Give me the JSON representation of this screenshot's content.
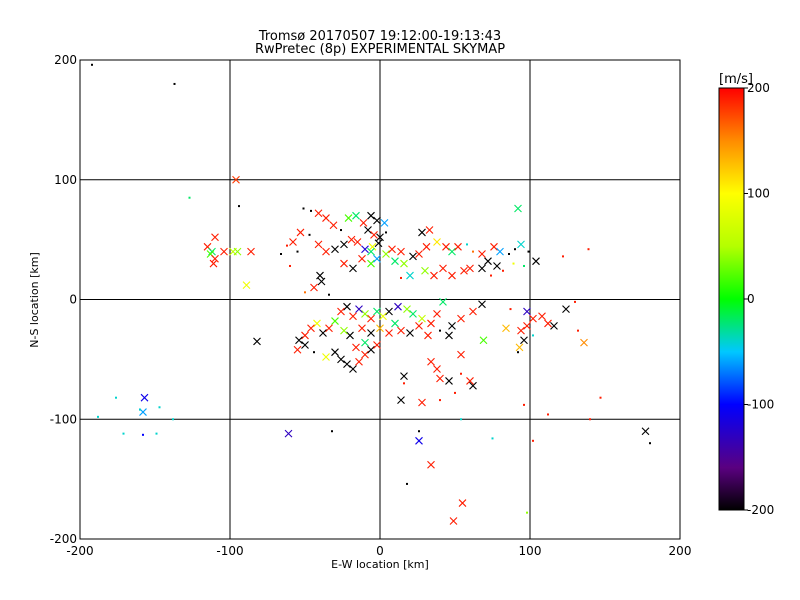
{
  "chart_data": {
    "type": "scatter",
    "title": "Tromsø 20170507 19:12:00-19:13:43",
    "subtitle": "RwPretec (8p) EXPERIMENTAL SKYMAP",
    "xlabel": "E-W location [km]",
    "ylabel": "N-S location [km]",
    "xlim": [
      -200,
      200
    ],
    "ylim": [
      -200,
      200
    ],
    "x_ticks": [
      "-200",
      "-100",
      "0",
      "100",
      "200"
    ],
    "y_ticks": [
      "-200",
      "-100",
      "0",
      "100",
      "200"
    ],
    "grid": true,
    "colorbar": {
      "label": "[m/s]",
      "range": [
        -200,
        200
      ],
      "ticks": [
        "200",
        "100",
        "0",
        "-100",
        "-200"
      ],
      "colormap": "black-purple-blue-cyan-green-yellow-orange-red"
    },
    "marker_sizes": "large 'x' for strong echoes, small dots for weak echoes",
    "points": [
      {
        "x": -192,
        "y": 196,
        "v": -200,
        "m": "dot"
      },
      {
        "x": -137,
        "y": 180,
        "v": -200,
        "m": "dot"
      },
      {
        "x": -96,
        "y": 100,
        "v": 180,
        "m": "x"
      },
      {
        "x": -127,
        "y": 85,
        "v": -20,
        "m": "dot"
      },
      {
        "x": -94,
        "y": 78,
        "v": -200,
        "m": "dot"
      },
      {
        "x": -110,
        "y": 52,
        "v": 190,
        "m": "x"
      },
      {
        "x": -115,
        "y": 44,
        "v": 190,
        "m": "x"
      },
      {
        "x": -112,
        "y": 40,
        "v": -20,
        "m": "x"
      },
      {
        "x": -113,
        "y": 38,
        "v": 20,
        "m": "x"
      },
      {
        "x": -110,
        "y": 34,
        "v": 190,
        "m": "x"
      },
      {
        "x": -111,
        "y": 30,
        "v": 190,
        "m": "x"
      },
      {
        "x": -104,
        "y": 40,
        "v": 190,
        "m": "x"
      },
      {
        "x": -98,
        "y": 40,
        "v": 60,
        "m": "x"
      },
      {
        "x": -95,
        "y": 40,
        "v": 40,
        "m": "x"
      },
      {
        "x": -86,
        "y": 40,
        "v": 190,
        "m": "x"
      },
      {
        "x": -89,
        "y": 12,
        "v": 90,
        "m": "x"
      },
      {
        "x": -82,
        "y": -35,
        "v": -200,
        "m": "x"
      },
      {
        "x": -157,
        "y": -82,
        "v": -110,
        "m": "x"
      },
      {
        "x": -158,
        "y": -94,
        "v": -60,
        "m": "x"
      },
      {
        "x": -176,
        "y": -82,
        "v": -40,
        "m": "dot"
      },
      {
        "x": -188,
        "y": -98,
        "v": -40,
        "m": "dot"
      },
      {
        "x": -160,
        "y": -92,
        "v": -40,
        "m": "dot"
      },
      {
        "x": -147,
        "y": -90,
        "v": -40,
        "m": "dot"
      },
      {
        "x": -171,
        "y": -112,
        "v": -40,
        "m": "dot"
      },
      {
        "x": -158,
        "y": -113,
        "v": -100,
        "m": "dot"
      },
      {
        "x": -149,
        "y": -112,
        "v": -40,
        "m": "dot"
      },
      {
        "x": -138,
        "y": -100,
        "v": -40,
        "m": "dot"
      },
      {
        "x": -61,
        "y": -112,
        "v": -130,
        "m": "x"
      },
      {
        "x": -32,
        "y": -110,
        "v": -200,
        "m": "dot"
      },
      {
        "x": -51,
        "y": 76,
        "v": -200,
        "m": "dot"
      },
      {
        "x": -46,
        "y": 74,
        "v": -200,
        "m": "dot"
      },
      {
        "x": -41,
        "y": 72,
        "v": 190,
        "m": "x"
      },
      {
        "x": -36,
        "y": 68,
        "v": 190,
        "m": "x"
      },
      {
        "x": -31,
        "y": 62,
        "v": 190,
        "m": "x"
      },
      {
        "x": -26,
        "y": 58,
        "v": -200,
        "m": "dot"
      },
      {
        "x": -21,
        "y": 68,
        "v": 20,
        "m": "x"
      },
      {
        "x": -16,
        "y": 70,
        "v": -20,
        "m": "x"
      },
      {
        "x": -11,
        "y": 64,
        "v": 190,
        "m": "x"
      },
      {
        "x": -6,
        "y": 70,
        "v": -200,
        "m": "x"
      },
      {
        "x": -2,
        "y": 66,
        "v": -200,
        "m": "x"
      },
      {
        "x": 3,
        "y": 64,
        "v": -60,
        "m": "x"
      },
      {
        "x": -8,
        "y": 58,
        "v": -200,
        "m": "x"
      },
      {
        "x": -4,
        "y": 54,
        "v": 190,
        "m": "x"
      },
      {
        "x": 0,
        "y": 52,
        "v": -200,
        "m": "x"
      },
      {
        "x": 4,
        "y": 56,
        "v": -200,
        "m": "dot"
      },
      {
        "x": -1,
        "y": 47,
        "v": -200,
        "m": "x"
      },
      {
        "x": -5,
        "y": 44,
        "v": 90,
        "m": "x"
      },
      {
        "x": -10,
        "y": 42,
        "v": -120,
        "m": "x"
      },
      {
        "x": -15,
        "y": 48,
        "v": 190,
        "m": "x"
      },
      {
        "x": -19,
        "y": 50,
        "v": 190,
        "m": "x"
      },
      {
        "x": -24,
        "y": 46,
        "v": -200,
        "m": "x"
      },
      {
        "x": -30,
        "y": 42,
        "v": -200,
        "m": "x"
      },
      {
        "x": -36,
        "y": 40,
        "v": 190,
        "m": "x"
      },
      {
        "x": -41,
        "y": 46,
        "v": 190,
        "m": "x"
      },
      {
        "x": -47,
        "y": 54,
        "v": -200,
        "m": "dot"
      },
      {
        "x": -53,
        "y": 56,
        "v": 190,
        "m": "x"
      },
      {
        "x": -58,
        "y": 48,
        "v": 190,
        "m": "x"
      },
      {
        "x": -55,
        "y": 40,
        "v": -200,
        "m": "dot"
      },
      {
        "x": -62,
        "y": 45,
        "v": 190,
        "m": "dot"
      },
      {
        "x": -66,
        "y": 38,
        "v": -200,
        "m": "dot"
      },
      {
        "x": -60,
        "y": 28,
        "v": 190,
        "m": "dot"
      },
      {
        "x": -40,
        "y": 20,
        "v": -200,
        "m": "x"
      },
      {
        "x": -39,
        "y": 15,
        "v": -200,
        "m": "x"
      },
      {
        "x": -44,
        "y": 10,
        "v": 190,
        "m": "x"
      },
      {
        "x": -50,
        "y": 6,
        "v": 160,
        "m": "dot"
      },
      {
        "x": -34,
        "y": 4,
        "v": -200,
        "m": "dot"
      },
      {
        "x": -24,
        "y": 30,
        "v": 190,
        "m": "x"
      },
      {
        "x": -18,
        "y": 26,
        "v": -200,
        "m": "x"
      },
      {
        "x": -12,
        "y": 34,
        "v": 190,
        "m": "x"
      },
      {
        "x": -6,
        "y": 30,
        "v": 20,
        "m": "x"
      },
      {
        "x": -2,
        "y": 34,
        "v": -60,
        "m": "x"
      },
      {
        "x": -6,
        "y": 40,
        "v": -20,
        "m": "x"
      },
      {
        "x": 4,
        "y": 38,
        "v": 40,
        "m": "x"
      },
      {
        "x": 8,
        "y": 42,
        "v": 190,
        "m": "x"
      },
      {
        "x": 14,
        "y": 40,
        "v": 190,
        "m": "x"
      },
      {
        "x": 10,
        "y": 32,
        "v": -20,
        "m": "x"
      },
      {
        "x": 16,
        "y": 30,
        "v": 40,
        "m": "x"
      },
      {
        "x": 22,
        "y": 36,
        "v": -200,
        "m": "x"
      },
      {
        "x": 26,
        "y": 38,
        "v": 190,
        "m": "x"
      },
      {
        "x": 31,
        "y": 44,
        "v": 190,
        "m": "x"
      },
      {
        "x": 28,
        "y": 56,
        "v": -200,
        "m": "x"
      },
      {
        "x": 33,
        "y": 58,
        "v": 190,
        "m": "x"
      },
      {
        "x": 38,
        "y": 48,
        "v": 110,
        "m": "x"
      },
      {
        "x": 44,
        "y": 44,
        "v": 190,
        "m": "x"
      },
      {
        "x": 48,
        "y": 40,
        "v": -20,
        "m": "x"
      },
      {
        "x": 52,
        "y": 44,
        "v": 190,
        "m": "x"
      },
      {
        "x": 58,
        "y": 46,
        "v": -40,
        "m": "dot"
      },
      {
        "x": 62,
        "y": 40,
        "v": 160,
        "m": "dot"
      },
      {
        "x": 68,
        "y": 38,
        "v": 190,
        "m": "x"
      },
      {
        "x": 72,
        "y": 32,
        "v": -200,
        "m": "x"
      },
      {
        "x": 76,
        "y": 44,
        "v": 190,
        "m": "x"
      },
      {
        "x": 80,
        "y": 40,
        "v": -60,
        "m": "x"
      },
      {
        "x": 86,
        "y": 38,
        "v": -200,
        "m": "dot"
      },
      {
        "x": 90,
        "y": 42,
        "v": -200,
        "m": "dot"
      },
      {
        "x": 92,
        "y": 76,
        "v": -20,
        "m": "x"
      },
      {
        "x": 94,
        "y": 46,
        "v": -40,
        "m": "x"
      },
      {
        "x": 99,
        "y": 40,
        "v": -200,
        "m": "dot"
      },
      {
        "x": 104,
        "y": 32,
        "v": -200,
        "m": "x"
      },
      {
        "x": 96,
        "y": 28,
        "v": -20,
        "m": "dot"
      },
      {
        "x": 89,
        "y": 30,
        "v": 90,
        "m": "dot"
      },
      {
        "x": 82,
        "y": 24,
        "v": 190,
        "m": "dot"
      },
      {
        "x": 78,
        "y": 28,
        "v": -200,
        "m": "x"
      },
      {
        "x": 74,
        "y": 20,
        "v": 190,
        "m": "dot"
      },
      {
        "x": 68,
        "y": 26,
        "v": -200,
        "m": "x"
      },
      {
        "x": 60,
        "y": 26,
        "v": 190,
        "m": "x"
      },
      {
        "x": 56,
        "y": 24,
        "v": 190,
        "m": "x"
      },
      {
        "x": 48,
        "y": 20,
        "v": 190,
        "m": "x"
      },
      {
        "x": 42,
        "y": 26,
        "v": 190,
        "m": "x"
      },
      {
        "x": 36,
        "y": 20,
        "v": 190,
        "m": "x"
      },
      {
        "x": 30,
        "y": 24,
        "v": 40,
        "m": "x"
      },
      {
        "x": 20,
        "y": 20,
        "v": -40,
        "m": "x"
      },
      {
        "x": 14,
        "y": 18,
        "v": 190,
        "m": "dot"
      },
      {
        "x": 122,
        "y": 36,
        "v": 190,
        "m": "dot"
      },
      {
        "x": 139,
        "y": 42,
        "v": 190,
        "m": "dot"
      },
      {
        "x": 130,
        "y": -2,
        "v": 190,
        "m": "dot"
      },
      {
        "x": 124,
        "y": -8,
        "v": -200,
        "m": "x"
      },
      {
        "x": 116,
        "y": -22,
        "v": -200,
        "m": "x"
      },
      {
        "x": 112,
        "y": -20,
        "v": 190,
        "m": "x"
      },
      {
        "x": 108,
        "y": -14,
        "v": 190,
        "m": "x"
      },
      {
        "x": 102,
        "y": -16,
        "v": 190,
        "m": "x"
      },
      {
        "x": 98,
        "y": -22,
        "v": 190,
        "m": "x"
      },
      {
        "x": 94,
        "y": -26,
        "v": 190,
        "m": "x"
      },
      {
        "x": 96,
        "y": -34,
        "v": -200,
        "m": "x"
      },
      {
        "x": 93,
        "y": -40,
        "v": 130,
        "m": "x"
      },
      {
        "x": 92,
        "y": -44,
        "v": -200,
        "m": "dot"
      },
      {
        "x": 102,
        "y": -30,
        "v": -40,
        "m": "dot"
      },
      {
        "x": 98,
        "y": -10,
        "v": -130,
        "m": "x"
      },
      {
        "x": 87,
        "y": -8,
        "v": 190,
        "m": "dot"
      },
      {
        "x": 84,
        "y": -24,
        "v": 130,
        "m": "x"
      },
      {
        "x": 69,
        "y": -34,
        "v": 20,
        "m": "x"
      },
      {
        "x": 136,
        "y": -36,
        "v": 150,
        "m": "x"
      },
      {
        "x": 132,
        "y": -26,
        "v": 190,
        "m": "dot"
      },
      {
        "x": 140,
        "y": -100,
        "v": 190,
        "m": "dot"
      },
      {
        "x": 147,
        "y": -82,
        "v": 190,
        "m": "dot"
      },
      {
        "x": 112,
        "y": -96,
        "v": 190,
        "m": "dot"
      },
      {
        "x": 96,
        "y": -88,
        "v": 190,
        "m": "dot"
      },
      {
        "x": 102,
        "y": -118,
        "v": 190,
        "m": "dot"
      },
      {
        "x": 75,
        "y": -116,
        "v": -40,
        "m": "dot"
      },
      {
        "x": 98,
        "y": -178,
        "v": 40,
        "m": "dot"
      },
      {
        "x": 177,
        "y": -110,
        "v": -200,
        "m": "x"
      },
      {
        "x": 180,
        "y": -120,
        "v": -200,
        "m": "dot"
      },
      {
        "x": 68,
        "y": -4,
        "v": -200,
        "m": "x"
      },
      {
        "x": 62,
        "y": -10,
        "v": 190,
        "m": "x"
      },
      {
        "x": 54,
        "y": -16,
        "v": 190,
        "m": "x"
      },
      {
        "x": 48,
        "y": -22,
        "v": -200,
        "m": "x"
      },
      {
        "x": 42,
        "y": -2,
        "v": -20,
        "m": "x"
      },
      {
        "x": 38,
        "y": -12,
        "v": 190,
        "m": "x"
      },
      {
        "x": 34,
        "y": -20,
        "v": 190,
        "m": "x"
      },
      {
        "x": 28,
        "y": -16,
        "v": 60,
        "m": "x"
      },
      {
        "x": 22,
        "y": -12,
        "v": -20,
        "m": "x"
      },
      {
        "x": 18,
        "y": -8,
        "v": 40,
        "m": "x"
      },
      {
        "x": 12,
        "y": -6,
        "v": -130,
        "m": "x"
      },
      {
        "x": 6,
        "y": -10,
        "v": -200,
        "m": "x"
      },
      {
        "x": 2,
        "y": -14,
        "v": 90,
        "m": "x"
      },
      {
        "x": -2,
        "y": -10,
        "v": -20,
        "m": "x"
      },
      {
        "x": -6,
        "y": -16,
        "v": 190,
        "m": "x"
      },
      {
        "x": -10,
        "y": -12,
        "v": 40,
        "m": "x"
      },
      {
        "x": -14,
        "y": -8,
        "v": -130,
        "m": "x"
      },
      {
        "x": -18,
        "y": -14,
        "v": 190,
        "m": "x"
      },
      {
        "x": -22,
        "y": -6,
        "v": -200,
        "m": "x"
      },
      {
        "x": -26,
        "y": -10,
        "v": 190,
        "m": "x"
      },
      {
        "x": -30,
        "y": -18,
        "v": 20,
        "m": "x"
      },
      {
        "x": -34,
        "y": -24,
        "v": 190,
        "m": "x"
      },
      {
        "x": -38,
        "y": -28,
        "v": -200,
        "m": "x"
      },
      {
        "x": -42,
        "y": -20,
        "v": 90,
        "m": "x"
      },
      {
        "x": -46,
        "y": -24,
        "v": 190,
        "m": "x"
      },
      {
        "x": -50,
        "y": -30,
        "v": 190,
        "m": "x"
      },
      {
        "x": -54,
        "y": -34,
        "v": -200,
        "m": "x"
      },
      {
        "x": -55,
        "y": -42,
        "v": 190,
        "m": "x"
      },
      {
        "x": -50,
        "y": -38,
        "v": -200,
        "m": "x"
      },
      {
        "x": -44,
        "y": -44,
        "v": -200,
        "m": "dot"
      },
      {
        "x": -36,
        "y": -48,
        "v": 90,
        "m": "x"
      },
      {
        "x": -30,
        "y": -44,
        "v": -200,
        "m": "x"
      },
      {
        "x": -26,
        "y": -50,
        "v": -200,
        "m": "x"
      },
      {
        "x": -22,
        "y": -54,
        "v": -200,
        "m": "x"
      },
      {
        "x": -18,
        "y": -58,
        "v": -200,
        "m": "x"
      },
      {
        "x": -14,
        "y": -52,
        "v": 190,
        "m": "x"
      },
      {
        "x": -10,
        "y": -46,
        "v": 190,
        "m": "x"
      },
      {
        "x": -6,
        "y": -42,
        "v": -200,
        "m": "x"
      },
      {
        "x": -2,
        "y": -38,
        "v": 190,
        "m": "x"
      },
      {
        "x": -10,
        "y": -36,
        "v": -20,
        "m": "x"
      },
      {
        "x": -16,
        "y": -40,
        "v": 190,
        "m": "x"
      },
      {
        "x": -20,
        "y": -30,
        "v": -200,
        "m": "x"
      },
      {
        "x": -24,
        "y": -26,
        "v": 40,
        "m": "x"
      },
      {
        "x": -12,
        "y": -24,
        "v": 190,
        "m": "x"
      },
      {
        "x": -6,
        "y": -28,
        "v": -200,
        "m": "x"
      },
      {
        "x": 0,
        "y": -24,
        "v": 130,
        "m": "x"
      },
      {
        "x": 6,
        "y": -28,
        "v": 190,
        "m": "x"
      },
      {
        "x": 10,
        "y": -20,
        "v": -20,
        "m": "x"
      },
      {
        "x": 14,
        "y": -26,
        "v": 190,
        "m": "x"
      },
      {
        "x": 20,
        "y": -28,
        "v": -200,
        "m": "x"
      },
      {
        "x": 26,
        "y": -22,
        "v": 190,
        "m": "x"
      },
      {
        "x": 32,
        "y": -30,
        "v": 190,
        "m": "x"
      },
      {
        "x": 40,
        "y": -26,
        "v": -200,
        "m": "dot"
      },
      {
        "x": 46,
        "y": -30,
        "v": -200,
        "m": "x"
      },
      {
        "x": 54,
        "y": -46,
        "v": 190,
        "m": "x"
      },
      {
        "x": 34,
        "y": -52,
        "v": 190,
        "m": "x"
      },
      {
        "x": 38,
        "y": -58,
        "v": 190,
        "m": "x"
      },
      {
        "x": 40,
        "y": -66,
        "v": 190,
        "m": "x"
      },
      {
        "x": 46,
        "y": -68,
        "v": -200,
        "m": "x"
      },
      {
        "x": 54,
        "y": -62,
        "v": 190,
        "m": "dot"
      },
      {
        "x": 60,
        "y": -68,
        "v": 190,
        "m": "x"
      },
      {
        "x": 50,
        "y": -78,
        "v": 190,
        "m": "dot"
      },
      {
        "x": 40,
        "y": -84,
        "v": 190,
        "m": "dot"
      },
      {
        "x": 62,
        "y": -72,
        "v": -200,
        "m": "x"
      },
      {
        "x": 28,
        "y": -86,
        "v": 190,
        "m": "x"
      },
      {
        "x": 14,
        "y": -84,
        "v": -200,
        "m": "x"
      },
      {
        "x": 16,
        "y": -64,
        "v": -200,
        "m": "x"
      },
      {
        "x": 16,
        "y": -70,
        "v": 190,
        "m": "dot"
      },
      {
        "x": 26,
        "y": -110,
        "v": -200,
        "m": "dot"
      },
      {
        "x": 26,
        "y": -118,
        "v": -110,
        "m": "x"
      },
      {
        "x": 34,
        "y": -138,
        "v": 190,
        "m": "x"
      },
      {
        "x": 18,
        "y": -154,
        "v": -200,
        "m": "dot"
      },
      {
        "x": 55,
        "y": -170,
        "v": 190,
        "m": "x"
      },
      {
        "x": 49,
        "y": -185,
        "v": 190,
        "m": "x"
      },
      {
        "x": 54,
        "y": -100,
        "v": -40,
        "m": "dot"
      }
    ]
  }
}
